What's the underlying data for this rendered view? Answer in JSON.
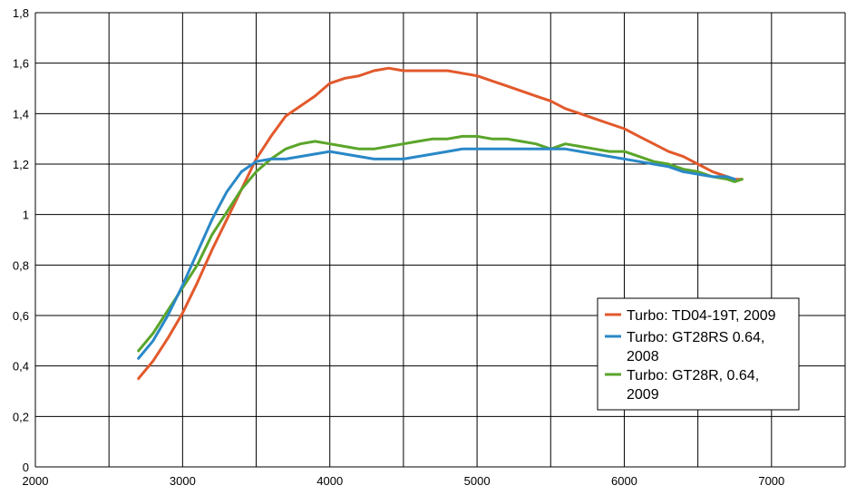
{
  "chart_data": {
    "type": "line",
    "title": "",
    "xlabel": "",
    "ylabel": "",
    "xlim": [
      2000,
      7500
    ],
    "ylim": [
      0,
      1.8
    ],
    "x_ticks": [
      "2000",
      "3000",
      "4000",
      "5000",
      "6000",
      "7000"
    ],
    "y_ticks": [
      "0",
      "0,2",
      "0,4",
      "0,6",
      "0,8",
      "1",
      "1,2",
      "1,4",
      "1,6",
      "1,8"
    ],
    "grid": true,
    "legend_position": "right-middle",
    "series": [
      {
        "name": "Turbo: TD04-19T, 2009",
        "color": "#e2592c",
        "x": [
          2700,
          2800,
          2900,
          3000,
          3100,
          3200,
          3300,
          3400,
          3500,
          3600,
          3700,
          3800,
          3900,
          4000,
          4100,
          4200,
          4300,
          4400,
          4500,
          4600,
          4700,
          4800,
          4900,
          5000,
          5100,
          5200,
          5300,
          5400,
          5500,
          5600,
          5700,
          5800,
          5900,
          6000,
          6100,
          6200,
          6300,
          6400,
          6500,
          6600,
          6700,
          6750,
          6800
        ],
        "values": [
          0.35,
          0.42,
          0.51,
          0.61,
          0.73,
          0.86,
          0.98,
          1.1,
          1.22,
          1.31,
          1.39,
          1.43,
          1.47,
          1.52,
          1.54,
          1.55,
          1.57,
          1.58,
          1.57,
          1.57,
          1.57,
          1.57,
          1.56,
          1.55,
          1.53,
          1.51,
          1.49,
          1.47,
          1.45,
          1.42,
          1.4,
          1.38,
          1.36,
          1.34,
          1.31,
          1.28,
          1.25,
          1.23,
          1.2,
          1.17,
          1.15,
          1.14,
          1.14
        ]
      },
      {
        "name": "Turbo: GT28RS 0.64, 2008",
        "color": "#2a88c7",
        "x": [
          2700,
          2800,
          2900,
          3000,
          3100,
          3200,
          3300,
          3400,
          3500,
          3600,
          3700,
          3800,
          3900,
          4000,
          4100,
          4200,
          4300,
          4400,
          4500,
          4600,
          4700,
          4800,
          4900,
          5000,
          5100,
          5200,
          5300,
          5400,
          5500,
          5600,
          5700,
          5800,
          5900,
          6000,
          6100,
          6200,
          6300,
          6400,
          6500,
          6600,
          6700,
          6750
        ],
        "values": [
          0.43,
          0.5,
          0.6,
          0.72,
          0.85,
          0.98,
          1.09,
          1.17,
          1.21,
          1.22,
          1.22,
          1.23,
          1.24,
          1.25,
          1.24,
          1.23,
          1.22,
          1.22,
          1.22,
          1.23,
          1.24,
          1.25,
          1.26,
          1.26,
          1.26,
          1.26,
          1.26,
          1.26,
          1.26,
          1.26,
          1.25,
          1.24,
          1.23,
          1.22,
          1.21,
          1.2,
          1.19,
          1.17,
          1.16,
          1.15,
          1.15,
          1.14
        ]
      },
      {
        "name": "Turbo: GT28R, 0.64, 2009",
        "color": "#5aa52a",
        "x": [
          2700,
          2800,
          2900,
          3000,
          3100,
          3200,
          3300,
          3400,
          3500,
          3600,
          3700,
          3800,
          3900,
          4000,
          4100,
          4200,
          4300,
          4400,
          4500,
          4600,
          4700,
          4800,
          4900,
          5000,
          5100,
          5200,
          5300,
          5400,
          5500,
          5600,
          5700,
          5800,
          5900,
          6000,
          6100,
          6200,
          6300,
          6400,
          6500,
          6600,
          6700,
          6750,
          6800
        ],
        "values": [
          0.46,
          0.53,
          0.62,
          0.71,
          0.8,
          0.92,
          1.01,
          1.1,
          1.17,
          1.22,
          1.26,
          1.28,
          1.29,
          1.28,
          1.27,
          1.26,
          1.26,
          1.27,
          1.28,
          1.29,
          1.3,
          1.3,
          1.31,
          1.31,
          1.3,
          1.3,
          1.29,
          1.28,
          1.26,
          1.28,
          1.27,
          1.26,
          1.25,
          1.25,
          1.23,
          1.21,
          1.2,
          1.18,
          1.17,
          1.15,
          1.14,
          1.13,
          1.14
        ]
      }
    ]
  }
}
